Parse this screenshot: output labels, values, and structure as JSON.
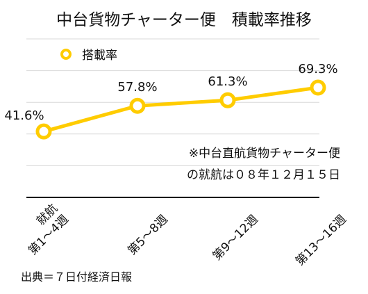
{
  "chart_data": {
    "type": "line",
    "title": "中台貨物チャーター便　積載率推移",
    "categories": [
      "就航\n第1～4週",
      "第5～8週",
      "第9～12週",
      "第13～16週"
    ],
    "series": [
      {
        "name": "搭載率",
        "values": [
          41.6,
          57.8,
          61.3,
          69.3
        ],
        "color": "#FFCC00"
      }
    ],
    "data_labels": [
      "41.6%",
      "57.8%",
      "61.3%",
      "69.3%"
    ],
    "ylim": [
      0,
      100
    ],
    "grid": true,
    "legend": "top-left",
    "annotation": [
      "※中台直航貨物チャーター便",
      "の就航は０８年１２月１５日"
    ],
    "source": "出典＝７日付経済日報"
  }
}
